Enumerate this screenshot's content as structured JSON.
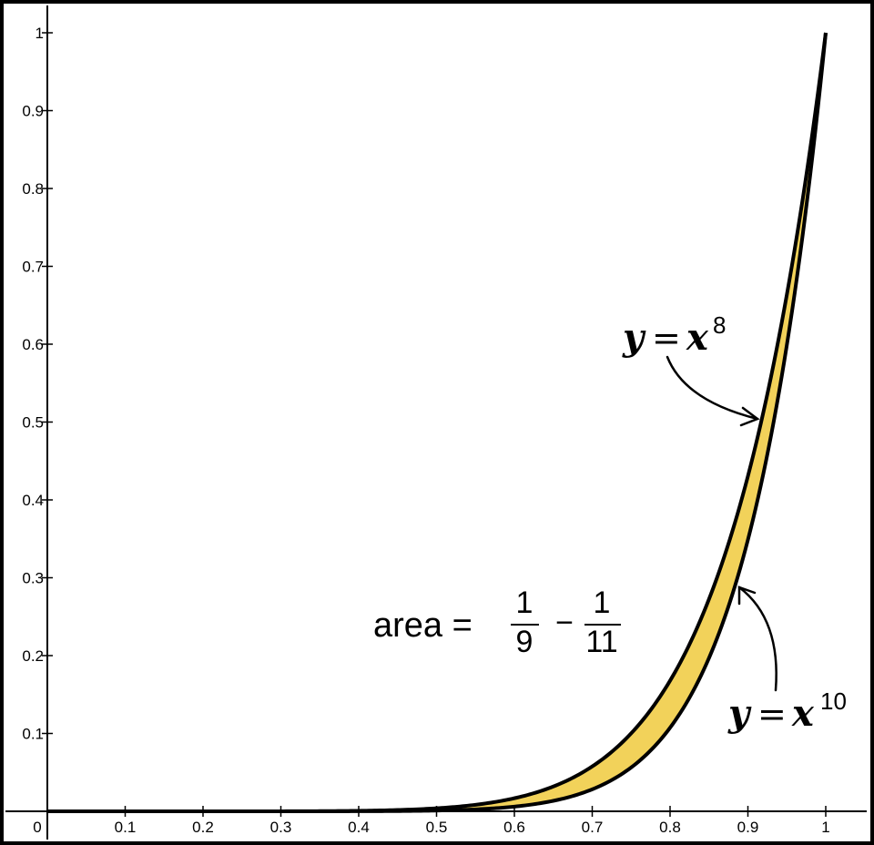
{
  "chart_data": {
    "type": "area",
    "x_ticks": [
      "0",
      "0.1",
      "0.2",
      "0.3",
      "0.4",
      "0.5",
      "0.6",
      "0.7",
      "0.8",
      "0.9",
      "1"
    ],
    "y_ticks": [
      "0.1",
      "0.2",
      "0.3",
      "0.4",
      "0.5",
      "0.6",
      "0.7",
      "0.8",
      "0.9",
      "1"
    ],
    "xlim": [
      0,
      1
    ],
    "ylim": [
      0,
      1
    ],
    "grid": false,
    "series": [
      {
        "name": "y = x^8",
        "function": "x^8",
        "color": "#000000"
      },
      {
        "name": "y = x^10",
        "function": "x^10",
        "color": "#000000"
      }
    ],
    "fill_color": "#f2d25a",
    "x": [
      0,
      0.1,
      0.2,
      0.3,
      0.4,
      0.5,
      0.6,
      0.7,
      0.8,
      0.9,
      1.0
    ],
    "upper_values": [
      0,
      1e-08,
      2.6e-06,
      6.56e-05,
      0.000655,
      0.00391,
      0.0168,
      0.0576,
      0.168,
      0.43,
      1.0
    ],
    "lower_values": [
      0,
      1e-10,
      1e-07,
      5.9e-06,
      0.000105,
      0.000977,
      0.00605,
      0.0282,
      0.107,
      0.349,
      1.0
    ],
    "annotations": {
      "curve_upper": {
        "y": "y",
        "eq": "=",
        "x": "x",
        "exp": "8"
      },
      "curve_lower": {
        "y": "y",
        "eq": "=",
        "x": "x",
        "exp": "10"
      },
      "area": {
        "label": "area =",
        "frac1_num": "1",
        "frac1_den": "9",
        "minus": "−",
        "frac2_num": "1",
        "frac2_den": "11"
      }
    }
  }
}
